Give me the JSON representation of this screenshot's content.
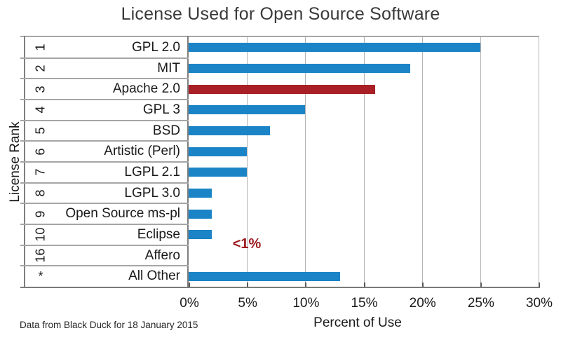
{
  "page": {
    "title": "License Used for Open Source Software",
    "footnote": "Data from Black Duck for 18 January 2015"
  },
  "chart_data": {
    "type": "bar",
    "orientation": "horizontal",
    "title": "License Used for Open Source Software",
    "xlabel": "Percent of Use",
    "ylabel": "License Rank",
    "xlim": [
      0,
      30
    ],
    "grid": true,
    "x_ticks": [
      {
        "value": 0,
        "label": "0%"
      },
      {
        "value": 5,
        "label": "5%"
      },
      {
        "value": 10,
        "label": "10%"
      },
      {
        "value": 15,
        "label": "15%"
      },
      {
        "value": 20,
        "label": "20%"
      },
      {
        "value": 25,
        "label": "25%"
      },
      {
        "value": 30,
        "label": "30%"
      }
    ],
    "rows": [
      {
        "rank": "1",
        "label": "GPL 2.0",
        "value": 25,
        "highlight": false
      },
      {
        "rank": "2",
        "label": "MIT",
        "value": 19,
        "highlight": false
      },
      {
        "rank": "3",
        "label": "Apache 2.0",
        "value": 16,
        "highlight": true
      },
      {
        "rank": "4",
        "label": "GPL 3",
        "value": 10,
        "highlight": false
      },
      {
        "rank": "5",
        "label": "BSD",
        "value": 7,
        "highlight": false
      },
      {
        "rank": "6",
        "label": "Artistic (Perl)",
        "value": 5,
        "highlight": false
      },
      {
        "rank": "7",
        "label": "LGPL 2.1",
        "value": 5,
        "highlight": false
      },
      {
        "rank": "8",
        "label": "LGPL 3.0",
        "value": 2,
        "highlight": false
      },
      {
        "rank": "9",
        "label": "Open Source ms-pl",
        "value": 2,
        "highlight": false
      },
      {
        "rank": "10",
        "label": "Eclipse",
        "value": 2,
        "highlight": false
      },
      {
        "rank": "16",
        "label": "Affero",
        "value": 0,
        "highlight": false
      },
      {
        "rank": "*",
        "label": "All Other",
        "value": 13,
        "highlight": false
      }
    ],
    "annotation": {
      "text": "<1%",
      "refers_to": "Affero",
      "color": "#9E1B20"
    },
    "colors": {
      "bar_default": "#1B84C7",
      "bar_highlight": "#A82026",
      "annotation": "#9E1B20",
      "gridline": "#B3B3B3",
      "row_line": "#A6A6A6",
      "table_border": "#7F7F7F",
      "axis_line": "#7A7A7A",
      "tick": "#595959",
      "title_text": "#3A3A3A",
      "label_text": "#1A1A1A"
    }
  }
}
